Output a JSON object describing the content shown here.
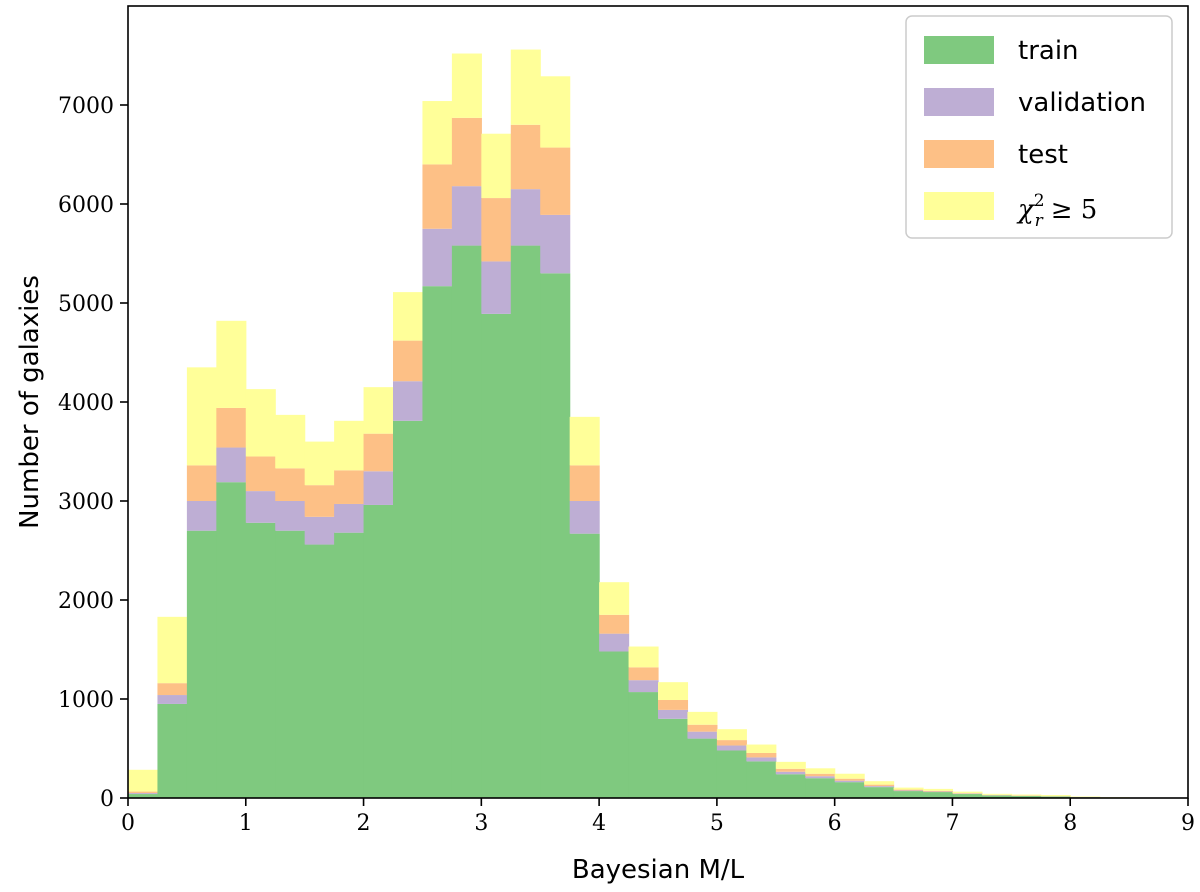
{
  "chart_data": {
    "type": "bar",
    "stacked": true,
    "histogram": true,
    "bin_width": 0.25,
    "bin_starts": [
      0,
      0.25,
      0.5,
      0.75,
      1,
      1.25,
      1.5,
      1.75,
      2,
      2.25,
      2.5,
      2.75,
      3,
      3.25,
      3.5,
      3.75,
      4,
      4.25,
      4.5,
      4.75,
      5,
      5.25,
      5.5,
      5.75,
      6,
      6.25,
      6.5,
      6.75,
      7,
      7.25,
      7.5,
      7.75,
      8,
      8.25,
      8.5,
      8.75
    ],
    "series": [
      {
        "name": "train",
        "color": "#7fc97f",
        "values": [
          40,
          950,
          2700,
          3190,
          2780,
          2700,
          2560,
          2680,
          2960,
          3810,
          5170,
          5580,
          4890,
          5580,
          5300,
          2670,
          1480,
          1070,
          800,
          600,
          480,
          370,
          240,
          200,
          160,
          110,
          70,
          60,
          40,
          25,
          20,
          15,
          8,
          5,
          3,
          2
        ]
      },
      {
        "name": "validation",
        "color": "#beaed4",
        "values": [
          10,
          90,
          300,
          350,
          320,
          300,
          280,
          290,
          340,
          400,
          580,
          600,
          530,
          570,
          590,
          330,
          180,
          120,
          90,
          70,
          50,
          40,
          25,
          20,
          15,
          10,
          6,
          5,
          4,
          3,
          2,
          1,
          1,
          1,
          0,
          0
        ]
      },
      {
        "name": "test",
        "color": "#fdc086",
        "values": [
          15,
          120,
          360,
          400,
          350,
          330,
          320,
          340,
          380,
          410,
          650,
          690,
          640,
          650,
          680,
          360,
          190,
          130,
          100,
          70,
          55,
          45,
          30,
          25,
          20,
          15,
          9,
          7,
          5,
          4,
          3,
          2,
          1,
          1,
          0,
          0
        ]
      },
      {
        "name": "chi2",
        "color": "#ffff99",
        "values": [
          220,
          670,
          990,
          880,
          680,
          540,
          440,
          500,
          470,
          490,
          640,
          650,
          650,
          760,
          720,
          490,
          330,
          210,
          180,
          130,
          110,
          85,
          70,
          55,
          50,
          35,
          20,
          20,
          15,
          10,
          10,
          12,
          5,
          3,
          2,
          1
        ]
      }
    ],
    "xlabel": "Bayesian M/L",
    "ylabel": "Number of galaxies",
    "xlim": [
      0,
      9
    ],
    "ylim": [
      0,
      8000
    ],
    "xticks": [
      "0",
      "1",
      "2",
      "3",
      "4",
      "5",
      "6",
      "7",
      "8",
      "9"
    ],
    "yticks": [
      "0",
      "1000",
      "2000",
      "3000",
      "4000",
      "5000",
      "6000",
      "7000"
    ],
    "grid": false,
    "legend_position": "top-right",
    "legend": [
      {
        "label": "train",
        "color": "#7fc97f"
      },
      {
        "label": "validation",
        "color": "#beaed4"
      },
      {
        "label": "test",
        "color": "#fdc086"
      },
      {
        "label": "χ²ᵣ ≥ 5",
        "color": "#ffff99",
        "math": true
      }
    ]
  }
}
